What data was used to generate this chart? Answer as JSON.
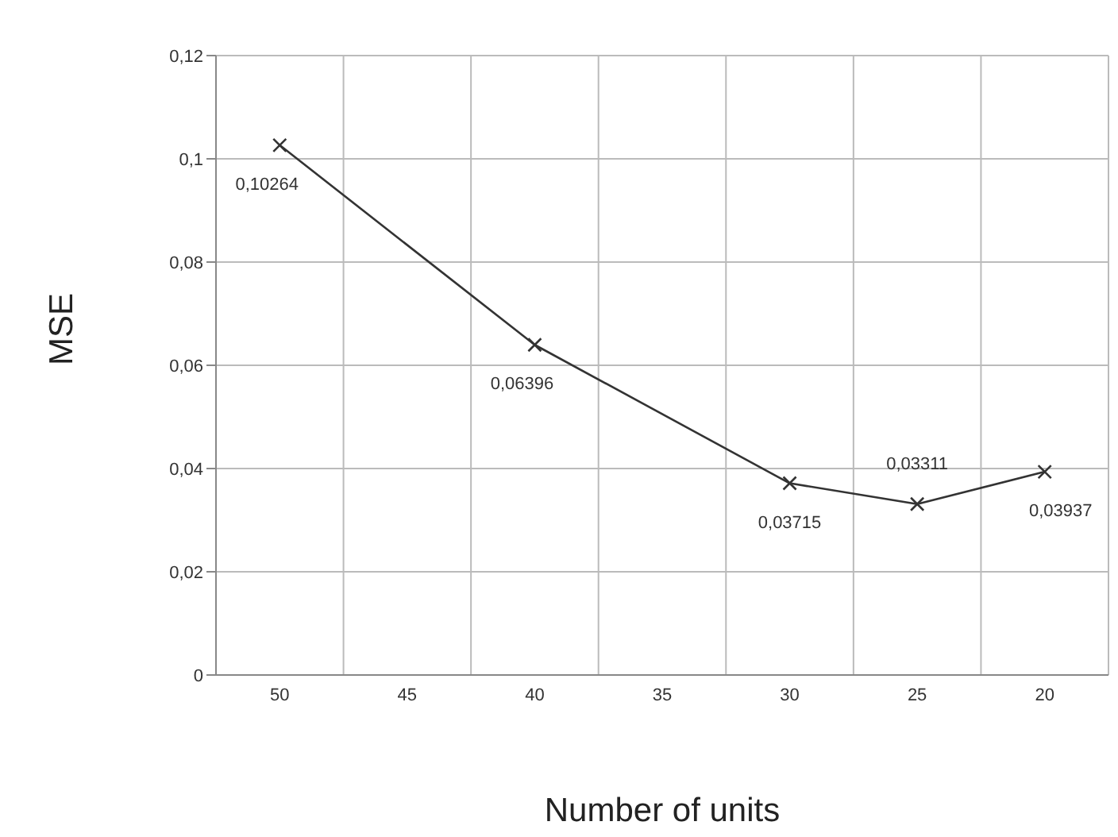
{
  "chart_data": {
    "type": "line",
    "xlabel": "Number of units",
    "ylabel": "MSE",
    "x": [
      50,
      40,
      30,
      25,
      20
    ],
    "series": [
      {
        "color": "#333333",
        "values": [
          0.10264,
          0.06396,
          0.03715,
          0.03311,
          0.03937
        ],
        "value_labels": [
          "0,10264",
          "0,06396",
          "0,03715",
          "0,03311",
          "0,03937"
        ]
      }
    ],
    "xlim": [
      52.5,
      17.5
    ],
    "xticks": [
      50,
      45,
      40,
      35,
      30,
      25,
      20,
      {
        "value": 52.5,
        "label": null
      },
      {
        "value": 47.5,
        "label": null
      },
      {
        "value": 42.5,
        "label": null
      },
      {
        "value": 37.5,
        "label": null
      },
      {
        "value": 32.5,
        "label": null
      },
      {
        "value": 27.5,
        "label": null
      },
      {
        "value": 22.5,
        "label": null
      },
      {
        "value": 17.5,
        "label": null
      }
    ],
    "ylim": [
      0,
      0.12
    ],
    "yticks": [
      {
        "value": 0,
        "label": "0"
      },
      {
        "value": 0.02,
        "label": "0,02"
      },
      {
        "value": 0.04,
        "label": "0,04"
      },
      {
        "value": 0.06,
        "label": "0,06"
      },
      {
        "value": 0.08,
        "label": "0,08"
      },
      {
        "value": 0.1,
        "label": "0,1"
      },
      {
        "value": 0.12,
        "label": "0,12"
      }
    ],
    "grid": true,
    "marker": "cross",
    "line_style": "solid",
    "legend": false
  }
}
